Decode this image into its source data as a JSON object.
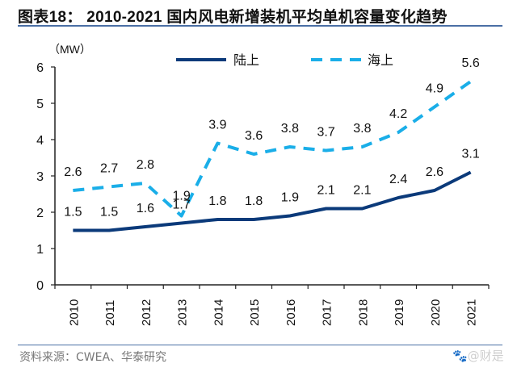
{
  "header": {
    "title": "图表18：  2010-2021 国内风电新增装机平均单机容量变化趋势"
  },
  "footer": {
    "source": "资料来源：CWEA、华泰研究",
    "watermark": "🐾@财是"
  },
  "colors": {
    "onshore": "#0b3a7a",
    "offshore": "#1aaee8",
    "rule": "#4a6fa5"
  },
  "chart_data": {
    "type": "line",
    "title": "2010-2021 国内风电新增装机平均单机容量变化趋势",
    "ylabel": "（MW）",
    "xlabel": "",
    "categories": [
      "2010",
      "2011",
      "2012",
      "2013",
      "2014",
      "2015",
      "2016",
      "2017",
      "2018",
      "2019",
      "2020",
      "2021"
    ],
    "ylim": [
      0,
      6
    ],
    "yticks": [
      "0",
      "1",
      "2",
      "3",
      "4",
      "5",
      "6"
    ],
    "grid": false,
    "legend_position": "top",
    "series": [
      {
        "name": "陆上",
        "style": "solid",
        "values": [
          1.5,
          1.5,
          1.6,
          1.7,
          1.8,
          1.8,
          1.9,
          2.1,
          2.1,
          2.4,
          2.6,
          3.1
        ],
        "labels": [
          "1.5",
          "1.5",
          "1.6",
          "1.7",
          "1.8",
          "1.8",
          "1.9",
          "2.1",
          "2.1",
          "2.4",
          "2.6",
          "3.1"
        ]
      },
      {
        "name": "海上",
        "style": "dashed",
        "values": [
          2.6,
          2.7,
          2.8,
          1.9,
          3.9,
          3.6,
          3.8,
          3.7,
          3.8,
          4.2,
          4.9,
          5.6
        ],
        "labels": [
          "2.6",
          "2.7",
          "2.8",
          "1.9",
          "3.9",
          "3.6",
          "3.8",
          "3.7",
          "3.8",
          "4.2",
          "4.9",
          "5.6"
        ]
      }
    ]
  }
}
